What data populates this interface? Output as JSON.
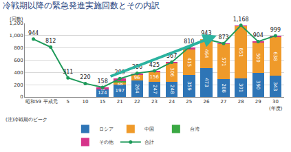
{
  "chart_data": {
    "type": "bar",
    "stacked": true,
    "title": "冷戦期以降の緊急発進実施回数とその内訳",
    "y_label": "(回数)",
    "x_label": "(年度)",
    "annotations": [
      "(注)冷戦期のピーク"
    ],
    "categories": [
      "昭和59",
      "平成元",
      "5",
      "10",
      "15",
      "21",
      "22",
      "23",
      "24",
      "25",
      "26",
      "27",
      "28",
      "29",
      "30"
    ],
    "series": [
      {
        "name": "ロシア",
        "color": "#2e75b6",
        "data_labels": true,
        "values": [
          null,
          null,
          null,
          null,
          124,
          197,
          264,
          247,
          248,
          359,
          473,
          288,
          301,
          390,
          343
        ]
      },
      {
        "name": "中国",
        "color": "#ef9a2a",
        "data_labels": true,
        "values": [
          null,
          null,
          null,
          null,
          2,
          38,
          96,
          156,
          306,
          415,
          464,
          571,
          851,
          500,
          638
        ]
      },
      {
        "name": "台湾",
        "color": "#3aa843",
        "data_labels": false,
        "values": [
          null,
          null,
          null,
          null,
          0,
          25,
          0,
          0,
          0,
          0,
          0,
          0,
          0,
          0,
          0
        ]
      },
      {
        "name": "その他",
        "color": "#d6338a",
        "data_labels": false,
        "values": [
          null,
          null,
          null,
          null,
          32,
          39,
          26,
          22,
          13,
          36,
          6,
          14,
          16,
          14,
          18
        ]
      },
      {
        "name": "合計",
        "type": "line",
        "marker": "circle",
        "color": "#1e9a5a",
        "data_labels": true,
        "values": [
          944,
          812,
          311,
          220,
          158,
          299,
          386,
          425,
          567,
          810,
          943,
          873,
          1168,
          904,
          999
        ],
        "value_labels": [
          "944",
          "812",
          "311",
          "220",
          "158",
          "299",
          "386",
          "425",
          "567",
          "810",
          "943",
          "873",
          "1,168",
          "904",
          "999"
        ]
      }
    ],
    "ylim": [
      0,
      1200
    ],
    "yticks": [
      0,
      200,
      400,
      600,
      800,
      {
        "value": 1000,
        "label": "1,000"
      },
      {
        "value": 1200,
        "label": "1,200"
      }
    ],
    "grid": true,
    "legend": "bottom"
  }
}
